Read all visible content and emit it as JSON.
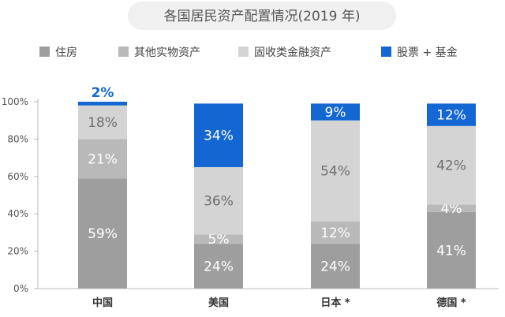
{
  "chart_data": {
    "type": "bar",
    "stacked": true,
    "title": "各国居民资产配置情况(2019 年)",
    "xlabel": "",
    "ylabel": "",
    "ylim": [
      0,
      100
    ],
    "yticks": [
      "0%",
      "20%",
      "40%",
      "60%",
      "80%",
      "100%"
    ],
    "categories": [
      "中国",
      "美国",
      "日本 *",
      "德国 *"
    ],
    "legend_position": "top",
    "grid": false,
    "series": [
      {
        "name": "住房",
        "color": "#9e9e9e",
        "values": [
          59,
          24,
          24,
          41
        ],
        "labels": [
          "59%",
          "24%",
          "24%",
          "41%"
        ]
      },
      {
        "name": "其他实物资产",
        "color": "#b9b9b9",
        "values": [
          21,
          5,
          12,
          4
        ],
        "labels": [
          "21%",
          "5%",
          "12%",
          "4%"
        ]
      },
      {
        "name": "固收类金融资产",
        "color": "#d4d4d4",
        "values": [
          18,
          36,
          54,
          42
        ],
        "labels": [
          "18%",
          "36%",
          "54%",
          "42%"
        ]
      },
      {
        "name": "股票 + 基金",
        "color": "#1467d2",
        "values": [
          2,
          34,
          9,
          12
        ],
        "labels": [
          "2%",
          "34%",
          "9%",
          "12%"
        ]
      }
    ]
  }
}
